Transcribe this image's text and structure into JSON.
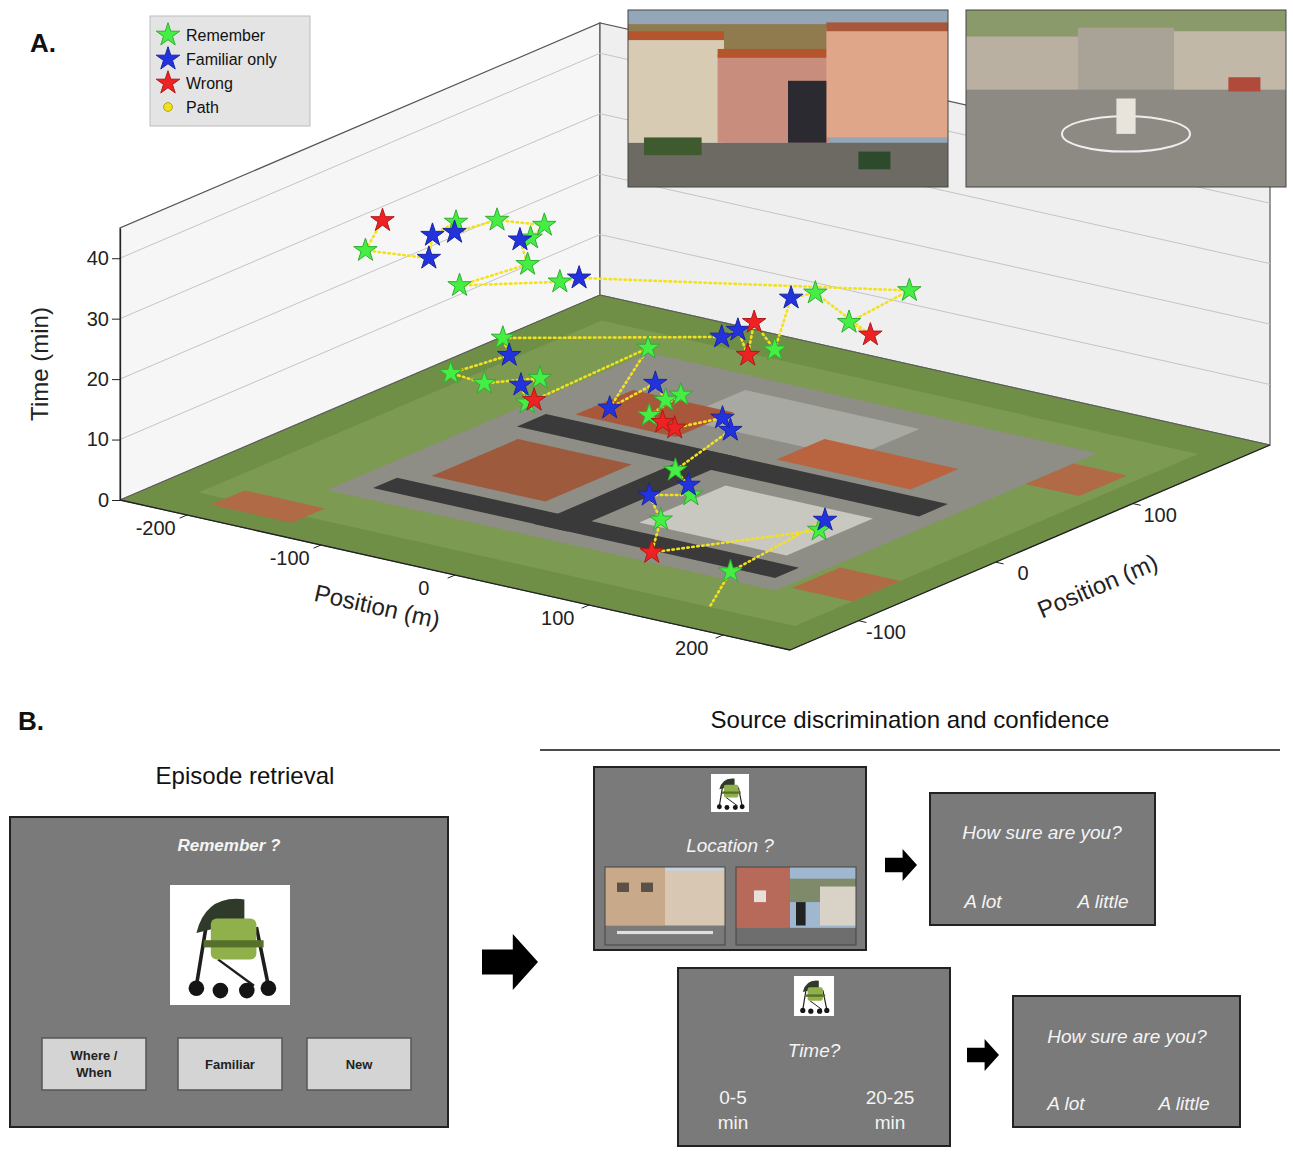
{
  "chart_data": {
    "type": "scatter3d",
    "panel_label": "A.",
    "x_label": "Position (m)",
    "y_label": "Position (m)",
    "z_label": "Time (min)",
    "xlim": [
      -250,
      250
    ],
    "xticks": [
      -200,
      -100,
      0,
      100,
      200
    ],
    "ylim": [
      -150,
      200
    ],
    "yticks": [
      -100,
      0,
      100
    ],
    "zlim": [
      0,
      45
    ],
    "zticks": [
      0,
      10,
      20,
      30,
      40
    ],
    "grid": true,
    "legend": "upper left",
    "series": [
      {
        "name": "Remember",
        "color": "#44ee44",
        "marker": "star",
        "x": [
          138,
          151,
          86,
          86,
          57,
          16,
          15,
          17,
          -34,
          -27,
          -42,
          -60,
          -81,
          -82,
          82,
          54,
          118,
          118,
          -63,
          -101,
          -85,
          -93,
          -94,
          -116,
          -120,
          -118
        ],
        "y": [
          -84,
          -32,
          -84,
          -62,
          -45,
          -24,
          0,
          -13,
          24,
          -71,
          -47,
          -70,
          -74,
          -35,
          3,
          60,
          66,
          22,
          -12,
          -48,
          -14,
          -4,
          7,
          -6,
          -32,
          -100
        ],
        "t": [
          1,
          3.5,
          7,
          9,
          10,
          15,
          16,
          16.5,
          19,
          19.5,
          20.5,
          21,
          22,
          24,
          26.5,
          29,
          32,
          31,
          32,
          33,
          34,
          37,
          38,
          39,
          41,
          43
        ]
      },
      {
        "name": "Familiar only",
        "color": "#2233dd",
        "marker": "star",
        "x": [
          139,
          59,
          77,
          52,
          41,
          -4,
          9,
          -47,
          -66,
          24,
          31,
          41,
          -65,
          -103,
          -116,
          -113,
          -85
        ],
        "y": [
          -16,
          -66,
          -55,
          0,
          5,
          0,
          -46,
          -56,
          -46,
          21,
          26,
          55,
          4,
          -2,
          -37,
          -56,
          -86
        ],
        "t": [
          3,
          8,
          9.5,
          12,
          13,
          17,
          18,
          20,
          23,
          24,
          25,
          28,
          31,
          36,
          40,
          41.5,
          42
        ]
      },
      {
        "name": "Wrong",
        "color": "#ee2222",
        "marker": "star",
        "x": [
          112,
          36,
          27,
          -30,
          37,
          68,
          136,
          -137
        ],
        "y": [
          -116,
          -25,
          -25,
          -63,
          32,
          -3,
          20,
          -69
        ],
        "t": [
          6,
          14,
          14.5,
          19,
          26,
          25.5,
          30,
          44
        ]
      },
      {
        "name": "Path",
        "color": "#f2e21e",
        "marker": "circle",
        "line_style": "dotted",
        "x": [
          160,
          138,
          139,
          151,
          112,
          86,
          59,
          86,
          77,
          57,
          52,
          41,
          36,
          27,
          16,
          15,
          17,
          -4,
          9,
          -34,
          -30,
          -27,
          -47,
          -42,
          -60,
          -81,
          -66,
          -82,
          24,
          31,
          68,
          37,
          82,
          41,
          54,
          136,
          118,
          118,
          -65,
          -63,
          -101,
          -85,
          -103,
          -93,
          -94,
          -116,
          -116,
          -120,
          -113,
          -85,
          -118,
          -137
        ],
        "y": [
          -120,
          -84,
          -16,
          -32,
          -116,
          -84,
          -66,
          -62,
          -55,
          -45,
          0,
          5,
          -25,
          -25,
          -24,
          0,
          -13,
          0,
          -46,
          24,
          -63,
          -71,
          -56,
          -47,
          -70,
          -74,
          -46,
          -35,
          21,
          26,
          -3,
          32,
          3,
          55,
          60,
          20,
          22,
          66,
          4,
          -12,
          -48,
          -14,
          -2,
          -4,
          7,
          -6,
          -37,
          -32,
          -56,
          -86,
          -100,
          -69
        ],
        "t": [
          0,
          1,
          3,
          3.5,
          6,
          7,
          8,
          9,
          9.5,
          10,
          12,
          13,
          14,
          14.5,
          15,
          16,
          16.5,
          17,
          18,
          19,
          19,
          19.5,
          20,
          20.5,
          21,
          22,
          23,
          24,
          24,
          25,
          25.5,
          26,
          26.5,
          28,
          29,
          30,
          31,
          32,
          31,
          32,
          33,
          34,
          36,
          37,
          38,
          39,
          40,
          41,
          41.5,
          42,
          43,
          44
        ]
      }
    ]
  },
  "panel_b": {
    "label": "B.",
    "retrieval": {
      "title": "Episode retrieval",
      "prompt": "Remember ?",
      "buttons": [
        "Where / When",
        "Familiar",
        "New"
      ]
    },
    "source": {
      "title": "Source discrimination and confidence",
      "location_prompt": "Location ?",
      "time_prompt": "Time?",
      "time_options": [
        "0-5 min",
        "20-25 min"
      ],
      "confidence_prompt": "How sure are you?",
      "confidence_options": [
        "A lot",
        "A little"
      ]
    }
  }
}
